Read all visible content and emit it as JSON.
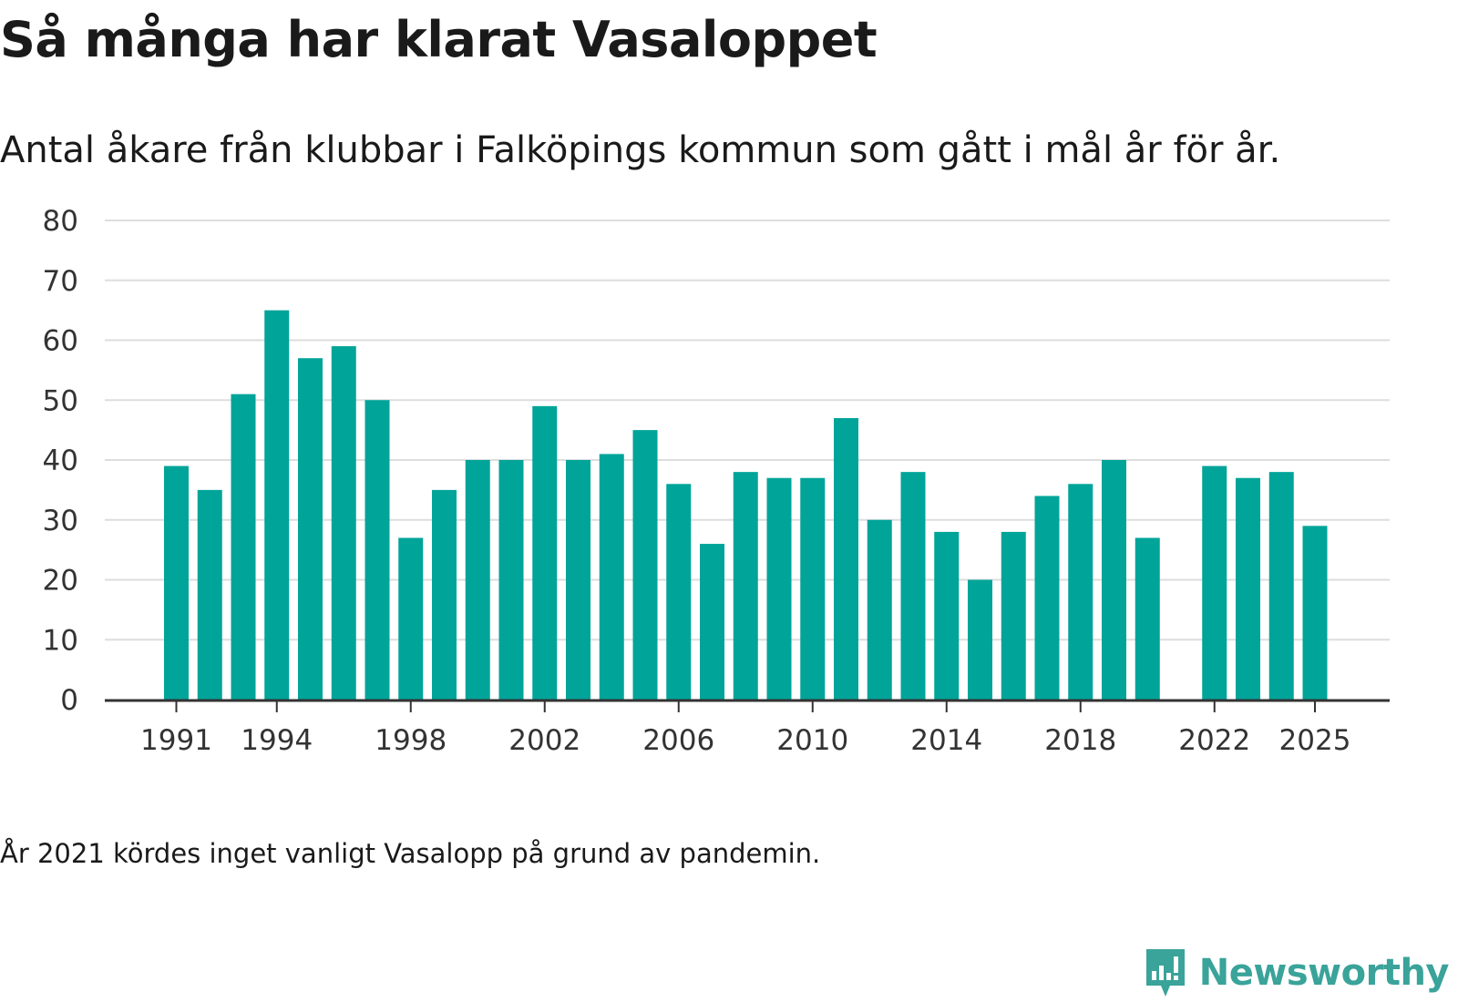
{
  "title": "Så många har klarat Vasaloppet",
  "subtitle": "Antal åkare från klubbar i Falköpings kommun som gått i mål år för år.",
  "footnote": "År 2021 kördes inget vanligt Vasalopp på grund av pandemin.",
  "logo": {
    "text": "Newsworthy",
    "icon": "newsworthy-logo-icon"
  },
  "colors": {
    "bar": "#00a499",
    "grid": "#dddddd",
    "axis": "#333333",
    "brand": "#3aa39a"
  },
  "chart_data": {
    "type": "bar",
    "title": "Så många har klarat Vasaloppet",
    "subtitle": "Antal åkare från klubbar i Falköpings kommun som gått i mål år för år.",
    "xlabel": "",
    "ylabel": "",
    "ylim": [
      0,
      80
    ],
    "yticks": [
      0,
      10,
      20,
      30,
      40,
      50,
      60,
      70,
      80
    ],
    "xtick_labels": [
      "1991",
      "1994",
      "1998",
      "2002",
      "2006",
      "2010",
      "2014",
      "2018",
      "2022",
      "2025"
    ],
    "grid": true,
    "categories": [
      1991,
      1992,
      1993,
      1994,
      1995,
      1996,
      1997,
      1998,
      1999,
      2000,
      2001,
      2002,
      2003,
      2004,
      2005,
      2006,
      2007,
      2008,
      2009,
      2010,
      2011,
      2012,
      2013,
      2014,
      2015,
      2016,
      2017,
      2018,
      2019,
      2020,
      2021,
      2022,
      2023,
      2024,
      2025
    ],
    "values": [
      39,
      35,
      51,
      65,
      57,
      59,
      50,
      27,
      35,
      40,
      40,
      49,
      40,
      41,
      45,
      36,
      26,
      38,
      37,
      37,
      47,
      30,
      38,
      28,
      20,
      28,
      34,
      36,
      40,
      27,
      null,
      39,
      37,
      38,
      29
    ]
  }
}
